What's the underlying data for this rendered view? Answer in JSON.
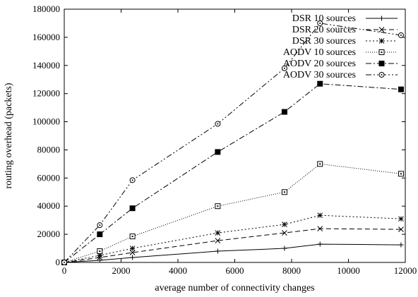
{
  "chart_data": {
    "type": "line",
    "xlabel": "average number of connectivity changes",
    "ylabel": "routing overhead (packets)",
    "xlim": [
      0,
      12000
    ],
    "ylim": [
      0,
      180000
    ],
    "xticks": [
      0,
      2000,
      4000,
      6000,
      8000,
      10000,
      12000
    ],
    "yticks": [
      0,
      20000,
      40000,
      60000,
      80000,
      100000,
      120000,
      140000,
      160000,
      180000
    ],
    "grid": false,
    "legend_position": "top-right",
    "x": [
      0,
      1250,
      2400,
      5400,
      7750,
      9000,
      11850
    ],
    "series": [
      {
        "name": "DSR 10 sources",
        "marker": "plus",
        "dash": "solid",
        "values": [
          0,
          1500,
          3500,
          8000,
          10000,
          13000,
          12500
        ]
      },
      {
        "name": "DSR 20 sources",
        "marker": "cross",
        "dash": "dashed",
        "values": [
          0,
          3500,
          7000,
          15500,
          21000,
          24000,
          23500
        ]
      },
      {
        "name": "DSR 30 sources",
        "marker": "star",
        "dash": "dotted",
        "values": [
          0,
          5000,
          10000,
          21000,
          27000,
          33500,
          31000
        ]
      },
      {
        "name": "AODV 10 sources",
        "marker": "square-open",
        "dash": "finedot",
        "values": [
          0,
          8000,
          18500,
          40000,
          50000,
          70000,
          63000
        ]
      },
      {
        "name": "AODV 20 sources",
        "marker": "square-filled",
        "dash": "dashdot",
        "values": [
          0,
          20000,
          38500,
          78500,
          107000,
          127000,
          123000
        ]
      },
      {
        "name": "AODV 30 sources",
        "marker": "circle-dot",
        "dash": "dashdotdot",
        "values": [
          0,
          26500,
          58500,
          98500,
          138000,
          170000,
          161500
        ]
      }
    ]
  }
}
